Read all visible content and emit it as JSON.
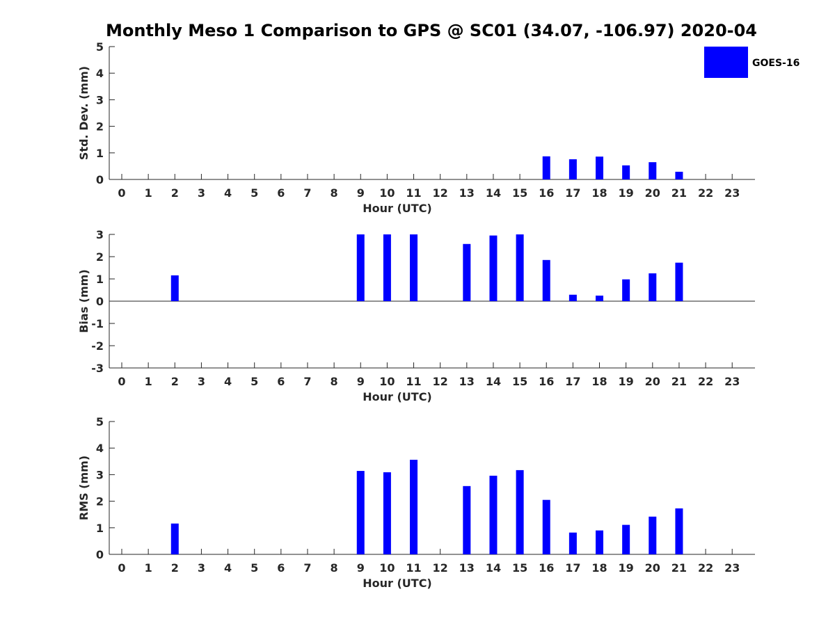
{
  "title": "Monthly Meso 1 Comparison to GPS @ SC01 (34.07, -106.97) 2020-04",
  "legend": {
    "label": "GOES-16",
    "color": "#0000ff",
    "position": "top-right"
  },
  "chart_data": [
    {
      "type": "bar",
      "ylabel": "Std. Dev. (mm)",
      "xlabel": "Hour (UTC)",
      "ylim": [
        0,
        5
      ],
      "yticks": [
        0,
        1,
        2,
        3,
        4,
        5
      ],
      "categories": [
        "0",
        "1",
        "2",
        "3",
        "4",
        "5",
        "6",
        "7",
        "8",
        "9",
        "10",
        "11",
        "12",
        "13",
        "14",
        "15",
        "16",
        "17",
        "18",
        "19",
        "20",
        "21",
        "22",
        "23"
      ],
      "series": [
        {
          "name": "GOES-16",
          "values": [
            null,
            null,
            null,
            null,
            null,
            null,
            null,
            null,
            null,
            null,
            null,
            null,
            null,
            null,
            null,
            null,
            0.87,
            0.76,
            0.86,
            0.53,
            0.65,
            0.29,
            null,
            null
          ]
        }
      ]
    },
    {
      "type": "bar",
      "ylabel": "Bias (mm)",
      "xlabel": "Hour (UTC)",
      "ylim": [
        -3,
        3
      ],
      "yticks": [
        -3,
        -2,
        -1,
        0,
        1,
        2,
        3
      ],
      "zero_line": true,
      "categories": [
        "0",
        "1",
        "2",
        "3",
        "4",
        "5",
        "6",
        "7",
        "8",
        "9",
        "10",
        "11",
        "12",
        "13",
        "14",
        "15",
        "16",
        "17",
        "18",
        "19",
        "20",
        "21",
        "22",
        "23"
      ],
      "series": [
        {
          "name": "GOES-16",
          "values": [
            null,
            null,
            1.16,
            null,
            null,
            null,
            null,
            null,
            null,
            3.0,
            3.0,
            3.0,
            null,
            2.57,
            2.95,
            3.0,
            1.85,
            0.29,
            0.25,
            0.98,
            1.25,
            1.73,
            null,
            null
          ]
        }
      ]
    },
    {
      "type": "bar",
      "ylabel": "RMS (mm)",
      "xlabel": "Hour (UTC)",
      "ylim": [
        0,
        5
      ],
      "yticks": [
        0,
        1,
        2,
        3,
        4,
        5
      ],
      "categories": [
        "0",
        "1",
        "2",
        "3",
        "4",
        "5",
        "6",
        "7",
        "8",
        "9",
        "10",
        "11",
        "12",
        "13",
        "14",
        "15",
        "16",
        "17",
        "18",
        "19",
        "20",
        "21",
        "22",
        "23"
      ],
      "series": [
        {
          "name": "GOES-16",
          "values": [
            null,
            null,
            1.16,
            null,
            null,
            null,
            null,
            null,
            null,
            3.14,
            3.09,
            3.56,
            null,
            2.57,
            2.96,
            3.17,
            2.05,
            0.82,
            0.9,
            1.11,
            1.42,
            1.73,
            null,
            null
          ]
        }
      ]
    }
  ]
}
